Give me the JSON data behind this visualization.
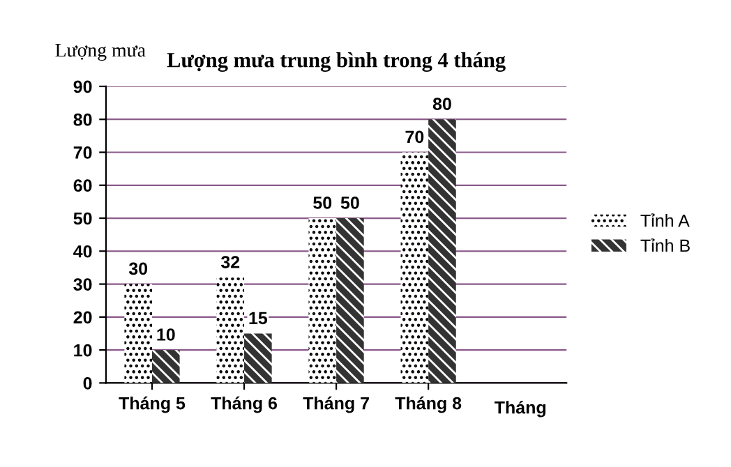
{
  "chart_data": {
    "type": "bar",
    "title": "Lượng mưa trung bình trong 4 tháng",
    "xlabel": "Tháng",
    "ylabel": "Lượng mưa",
    "categories": [
      "Tháng 5",
      "Tháng 6",
      "Tháng 7",
      "Tháng 8"
    ],
    "series": [
      {
        "name": "Tỉnh A",
        "color": "#ffffff",
        "values": [
          30,
          32,
          50,
          70
        ]
      },
      {
        "name": "Tỉnh B",
        "color": "#333333",
        "values": [
          10,
          15,
          50,
          80
        ]
      }
    ],
    "ylim": [
      0,
      90
    ],
    "yticks": [
      0,
      10,
      20,
      30,
      40,
      50,
      60,
      70,
      80,
      90
    ],
    "grid": "y",
    "legend": "right",
    "data_labels": true
  }
}
